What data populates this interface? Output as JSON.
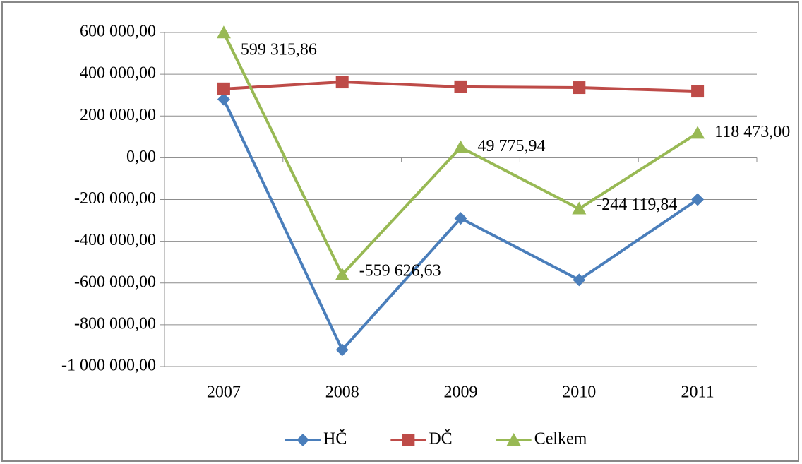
{
  "chart_data": {
    "type": "line",
    "categories": [
      "2007",
      "2008",
      "2009",
      "2010",
      "2011"
    ],
    "series": [
      {
        "name": "HČ",
        "color": "#4a7ebb",
        "marker": "diamond",
        "values": [
          280000,
          -920000,
          -290000,
          -585000,
          -200000
        ]
      },
      {
        "name": "DČ",
        "color": "#be4b48",
        "marker": "square",
        "values": [
          330000,
          363000,
          340000,
          336000,
          319000
        ]
      },
      {
        "name": "Celkem",
        "color": "#98b954",
        "marker": "triangle",
        "values": [
          599315.86,
          -559626.63,
          49775.94,
          -244119.84,
          118473.0
        ],
        "value_labels": [
          "599 315,86",
          "-559 626,63",
          "49 775,94",
          "-244 119,84",
          "118 473,00"
        ]
      }
    ],
    "ylim": [
      -1000000,
      600000
    ],
    "yticks": [
      {
        "value": -1000000,
        "label": "-1 000 000,00"
      },
      {
        "value": -800000,
        "label": "-800 000,00"
      },
      {
        "value": -600000,
        "label": "-600 000,00"
      },
      {
        "value": -400000,
        "label": "-400 000,00"
      },
      {
        "value": -200000,
        "label": "-200 000,00"
      },
      {
        "value": 0,
        "label": "0,00"
      },
      {
        "value": 200000,
        "label": "200 000,00"
      },
      {
        "value": 400000,
        "label": "400 000,00"
      },
      {
        "value": 600000,
        "label": "600 000,00"
      }
    ],
    "grid": true,
    "legend": "bottom"
  }
}
